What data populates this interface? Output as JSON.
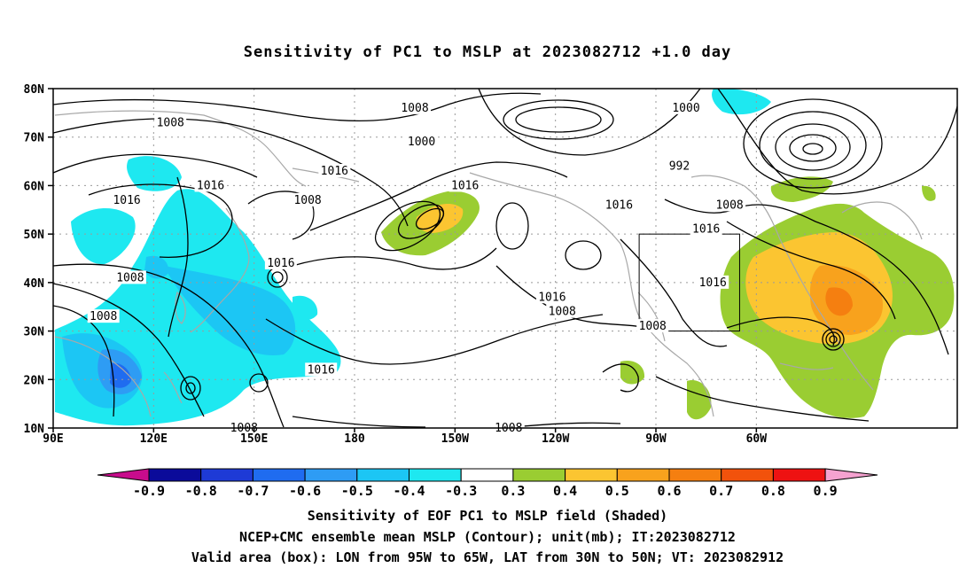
{
  "title": "Sensitivity of PC1 to MSLP at 2023082712 +1.0 day",
  "map": {
    "lat_labels": [
      "80N",
      "70N",
      "60N",
      "50N",
      "40N",
      "30N",
      "20N",
      "10N"
    ],
    "lon_labels": [
      "90E",
      "120E",
      "150E",
      "180",
      "150W",
      "120W",
      "90W",
      "60W"
    ],
    "valid_box": {
      "lon_min": -95,
      "lon_max": -65,
      "lat_min": 30,
      "lat_max": 50
    },
    "contour_labels": [
      {
        "text": "1008",
        "lon": 125,
        "lat": 73
      },
      {
        "text": "1016",
        "lon": 112,
        "lat": 57
      },
      {
        "text": "1016",
        "lon": 137,
        "lat": 60
      },
      {
        "text": "1008",
        "lon": 113,
        "lat": 41
      },
      {
        "text": "1008",
        "lon": 105,
        "lat": 33
      },
      {
        "text": "1008",
        "lon": 166,
        "lat": 57
      },
      {
        "text": "1016",
        "lon": 174,
        "lat": 63
      },
      {
        "text": "1016",
        "lon": 158,
        "lat": 44
      },
      {
        "text": "1016",
        "lon": 170,
        "lat": 22
      },
      {
        "text": "1008",
        "lon": 147,
        "lat": 10
      },
      {
        "text": "1008",
        "lon": -162,
        "lat": 76
      },
      {
        "text": "1000",
        "lon": -160,
        "lat": 69
      },
      {
        "text": "1016",
        "lon": -147,
        "lat": 60
      },
      {
        "text": "1016",
        "lon": -121,
        "lat": 37
      },
      {
        "text": "1008",
        "lon": -118,
        "lat": 34
      },
      {
        "text": "1008",
        "lon": -134,
        "lat": 10
      },
      {
        "text": "1016",
        "lon": -101,
        "lat": 56
      },
      {
        "text": "1000",
        "lon": -81,
        "lat": 76
      },
      {
        "text": "992",
        "lon": -83,
        "lat": 64
      },
      {
        "text": "1008",
        "lon": -68,
        "lat": 56
      },
      {
        "text": "1016",
        "lon": -75,
        "lat": 51
      },
      {
        "text": "1016",
        "lon": -73,
        "lat": 40
      },
      {
        "text": "1008",
        "lon": -91,
        "lat": 31
      }
    ]
  },
  "colorbar": {
    "labels": [
      "-0.9",
      "-0.8",
      "-0.7",
      "-0.6",
      "-0.5",
      "-0.4",
      "-0.3",
      "0.3",
      "0.4",
      "0.5",
      "0.6",
      "0.7",
      "0.8",
      "0.9"
    ],
    "colors": [
      "#0b0b9a",
      "#1e3ad6",
      "#1f6cf0",
      "#2e9cf4",
      "#1cc6f4",
      "#1ee8f0",
      "#ffffff",
      "#9acd32",
      "#fbc531",
      "#f8a21d",
      "#f57f10",
      "#f2520c",
      "#ee1212"
    ],
    "low_color": "#c80c8c",
    "high_color": "#f5a2d0"
  },
  "caption": {
    "line1": "Sensitivity of EOF PC1 to MSLP field (Shaded)",
    "line2": "NCEP+CMC ensemble mean MSLP (Contour); unit(mb); IT:2023082712",
    "line3": "Valid area (box): LON from 95W to 65W, LAT from 30N to 50N; VT: 2023082912"
  }
}
